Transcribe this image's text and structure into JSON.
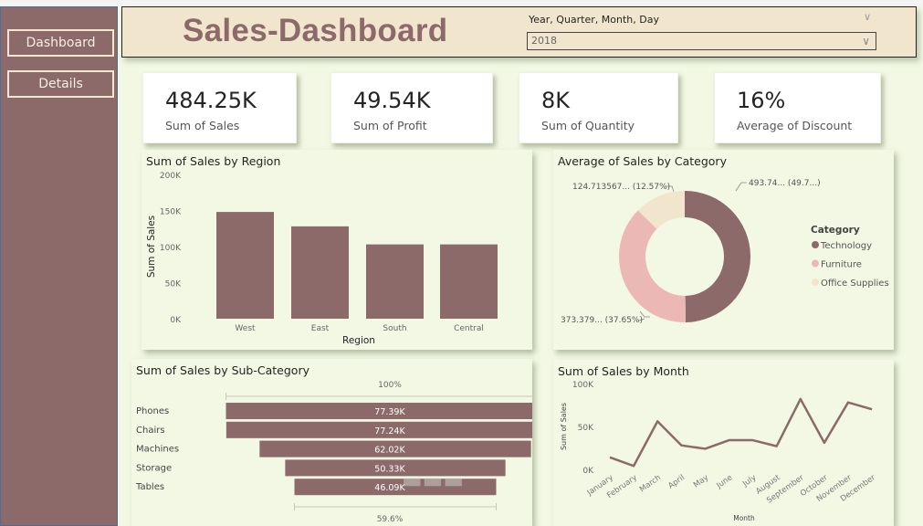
{
  "sidebar": {
    "buttons": [
      {
        "label": "Dashboard"
      },
      {
        "label": "Details"
      }
    ]
  },
  "header": {
    "title": "Sales-Dashboard",
    "slicer": {
      "label": "Year, Quarter, Month, Day",
      "selected": "2018"
    }
  },
  "kpis": [
    {
      "value": "484.25K",
      "label": "Sum of Sales"
    },
    {
      "value": "49.54K",
      "label": "Sum of Profit"
    },
    {
      "value": "8K",
      "label": "Sum of Quantity"
    },
    {
      "value": "16%",
      "label": "Average of Discount"
    }
  ],
  "colors": {
    "primary": "#8b6a69",
    "pink": "#ecb8b6",
    "beige": "#f1e6cd",
    "background": "#f2f8e4"
  },
  "chart_data": [
    {
      "id": "region",
      "type": "bar",
      "title": "Sum of Sales by Region",
      "xlabel": "Region",
      "ylabel": "Sum of Sales",
      "categories": [
        "West",
        "East",
        "South",
        "Central"
      ],
      "values": [
        148000,
        128000,
        103000,
        103000
      ],
      "yticks": [
        "0K",
        "50K",
        "100K",
        "150K",
        "200K"
      ],
      "ylim": [
        0,
        200000
      ]
    },
    {
      "id": "category",
      "type": "pie",
      "title": "Average of Sales by Category",
      "legend_title": "Category",
      "legend_position": "right",
      "categories": [
        "Technology",
        "Furniture",
        "Office Supplies"
      ],
      "values": [
        493.74,
        373.379,
        124.713567
      ],
      "percents": [
        49.78,
        37.65,
        12.57
      ],
      "data_labels": [
        "493.74... (49.7...)",
        "373.379... (37.65%)",
        "124.713567... (12.57%)"
      ]
    },
    {
      "id": "subcategory",
      "type": "bar",
      "orientation": "funnel",
      "title": "Sum of Sales by Sub-Category",
      "categories": [
        "Phones",
        "Chairs",
        "Machines",
        "Storage",
        "Tables"
      ],
      "values": [
        77390,
        77240,
        62020,
        50330,
        46090
      ],
      "value_labels": [
        "77.39K",
        "77.24K",
        "62.02K",
        "50.33K",
        "46.09K"
      ],
      "top_percent_label": "100%",
      "bottom_percent_label": "59.6%"
    },
    {
      "id": "month",
      "type": "line",
      "title": "Sum of Sales by Month",
      "xlabel": "Month",
      "ylabel": "Sum of Sales",
      "categories": [
        "January",
        "February",
        "March",
        "April",
        "May",
        "June",
        "July",
        "August",
        "September",
        "October",
        "November",
        "December"
      ],
      "values": [
        14000,
        4000,
        56000,
        28000,
        24000,
        34000,
        34000,
        27000,
        82000,
        31000,
        78000,
        70000
      ],
      "yticks": [
        "0K",
        "50K",
        "100K"
      ],
      "ylim": [
        0,
        100000
      ]
    }
  ]
}
